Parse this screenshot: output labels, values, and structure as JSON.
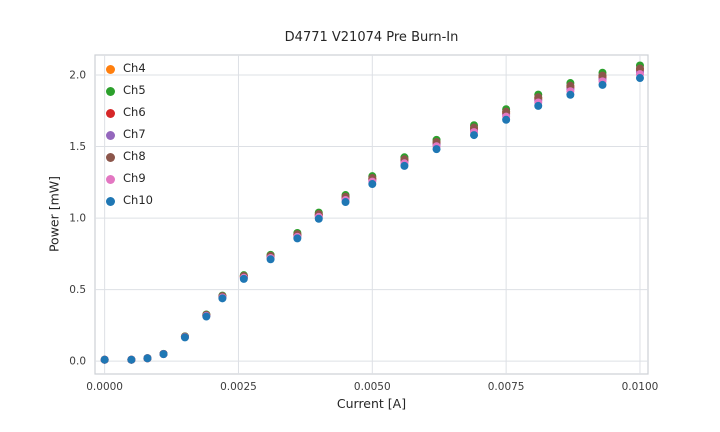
{
  "chart_data": {
    "type": "scatter",
    "title": "D4771 V21074 Pre Burn-In",
    "xlabel": "Current [A]",
    "ylabel": "Power [mW]",
    "xlim": [
      -0.00018,
      0.01015
    ],
    "ylim": [
      -0.09,
      2.14
    ],
    "xticks": [
      0.0,
      0.0025,
      0.005,
      0.0075,
      0.01
    ],
    "yticks": [
      0.0,
      0.5,
      1.0,
      1.5,
      2.0
    ],
    "grid": true,
    "legend_position": "upper left",
    "grid_color": "#dde0e5",
    "border_color": "#cdd0d6",
    "tick_color": "#3d3d3d",
    "x": [
      0.0,
      0.0005,
      0.0008,
      0.0011,
      0.0015,
      0.0019,
      0.0022,
      0.0026,
      0.0031,
      0.0036,
      0.004,
      0.0045,
      0.005,
      0.0056,
      0.0062,
      0.0069,
      0.0075,
      0.0081,
      0.0087,
      0.0093,
      0.01
    ],
    "series": [
      {
        "name": "Ch4",
        "color": "#ff7f0e",
        "values": [
          0.01,
          0.01,
          0.02,
          0.05,
          0.171,
          0.322,
          0.452,
          0.593,
          0.734,
          0.884,
          1.025,
          1.146,
          1.276,
          1.407,
          1.528,
          1.628,
          1.739,
          1.839,
          1.92,
          1.99,
          2.04
        ]
      },
      {
        "name": "Ch5",
        "color": "#2ca02c",
        "values": [
          0.01,
          0.01,
          0.02,
          0.051,
          0.173,
          0.326,
          0.458,
          0.601,
          0.743,
          0.896,
          1.038,
          1.161,
          1.293,
          1.425,
          1.547,
          1.649,
          1.761,
          1.863,
          1.944,
          2.016,
          2.067
        ]
      },
      {
        "name": "Ch6",
        "color": "#d62728",
        "values": [
          0.01,
          0.01,
          0.02,
          0.05,
          0.17,
          0.32,
          0.45,
          0.59,
          0.73,
          0.88,
          1.02,
          1.14,
          1.27,
          1.4,
          1.52,
          1.62,
          1.73,
          1.83,
          1.91,
          1.98,
          2.03
        ]
      },
      {
        "name": "Ch7",
        "color": "#9467bd",
        "values": [
          0.01,
          0.01,
          0.02,
          0.05,
          0.169,
          0.318,
          0.448,
          0.587,
          0.726,
          0.876,
          1.015,
          1.134,
          1.264,
          1.393,
          1.512,
          1.612,
          1.721,
          1.821,
          1.9,
          1.97,
          2.02
        ]
      },
      {
        "name": "Ch8",
        "color": "#8c564b",
        "values": [
          0.01,
          0.01,
          0.02,
          0.05,
          0.171,
          0.323,
          0.454,
          0.595,
          0.736,
          0.887,
          1.028,
          1.149,
          1.28,
          1.411,
          1.532,
          1.633,
          1.744,
          1.845,
          1.925,
          1.996,
          2.046
        ]
      },
      {
        "name": "Ch9",
        "color": "#e377c2",
        "values": [
          0.01,
          0.01,
          0.02,
          0.049,
          0.168,
          0.316,
          0.445,
          0.583,
          0.721,
          0.869,
          1.008,
          1.126,
          1.255,
          1.383,
          1.502,
          1.601,
          1.709,
          1.808,
          1.887,
          1.956,
          2.006
        ]
      },
      {
        "name": "Ch10",
        "color": "#1f77b4",
        "values": [
          0.01,
          0.01,
          0.02,
          0.049,
          0.166,
          0.312,
          0.439,
          0.575,
          0.712,
          0.858,
          0.995,
          1.112,
          1.238,
          1.365,
          1.482,
          1.58,
          1.687,
          1.784,
          1.862,
          1.931,
          1.979
        ]
      }
    ]
  }
}
